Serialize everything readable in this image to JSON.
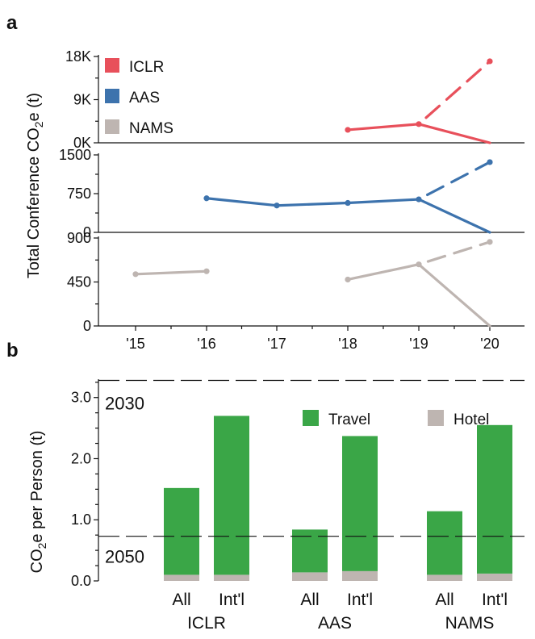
{
  "chart_data": [
    {
      "panel": "a",
      "type": "line",
      "ylabel": "Total Conference CO2e (t)",
      "x": [
        "'15",
        "'16",
        "'17",
        "'18",
        "'19",
        "'20"
      ],
      "colors": {
        "ICLR": "#e8505b",
        "AAS": "#3d73ad",
        "NAMS": "#beb5b1"
      },
      "legend": [
        "ICLR",
        "AAS",
        "NAMS"
      ],
      "subplots": [
        {
          "series": "ICLR",
          "ylim": [
            0,
            18000
          ],
          "yticks": [
            {
              "value": 0,
              "label": "0K"
            },
            {
              "value": 9000,
              "label": "9K"
            },
            {
              "value": 18000,
              "label": "18K"
            }
          ],
          "solid": [
            [
              "'18",
              2700
            ],
            [
              "'19",
              3900
            ],
            [
              "'20",
              0
            ]
          ],
          "dashed": [
            [
              "'19",
              3900
            ],
            [
              "'20",
              17000
            ]
          ]
        },
        {
          "series": "AAS",
          "ylim": [
            0,
            1500
          ],
          "yticks": [
            {
              "value": 0,
              "label": "0"
            },
            {
              "value": 750,
              "label": "750"
            },
            {
              "value": 1500,
              "label": "1500"
            }
          ],
          "solid": [
            [
              "'16",
              660
            ],
            [
              "'17",
              520
            ],
            [
              "'18",
              570
            ],
            [
              "'19",
              640
            ],
            [
              "'20",
              0
            ]
          ],
          "dashed": [
            [
              "'19",
              640
            ],
            [
              "'20",
              1360
            ]
          ]
        },
        {
          "series": "NAMS",
          "ylim": [
            0,
            900
          ],
          "yticks": [
            {
              "value": 0,
              "label": "0"
            },
            {
              "value": 450,
              "label": "450"
            },
            {
              "value": 900,
              "label": "900"
            }
          ],
          "solid_segments": [
            [
              [
                "'15",
                530
              ],
              [
                "'16",
                560
              ]
            ],
            [
              [
                "'18",
                475
              ],
              [
                "'19",
                630
              ],
              [
                "'20",
                0
              ]
            ]
          ],
          "dashed": [
            [
              "'19",
              630
            ],
            [
              "'20",
              860
            ]
          ]
        }
      ]
    },
    {
      "panel": "b",
      "type": "bar",
      "stacked": true,
      "ylabel": "CO2e per Person (t)",
      "ylim": [
        0,
        3.3
      ],
      "yticks": [
        "0.0",
        "1.0",
        "2.0",
        "3.0"
      ],
      "groups": [
        "ICLR",
        "AAS",
        "NAMS"
      ],
      "categories": [
        "All",
        "Int'l"
      ],
      "legend": [
        "Travel",
        "Hotel"
      ],
      "colors": {
        "Travel": "#3aa647",
        "Hotel": "#beb5b1"
      },
      "series": [
        {
          "name": "Hotel",
          "values": [
            [
              0.1,
              0.1
            ],
            [
              0.14,
              0.16
            ],
            [
              0.1,
              0.12
            ]
          ]
        },
        {
          "name": "Travel",
          "values": [
            [
              1.42,
              2.6
            ],
            [
              0.7,
              2.21
            ],
            [
              1.04,
              2.43
            ]
          ]
        }
      ],
      "reference_lines": [
        {
          "label": "2030",
          "value": 3.28
        },
        {
          "label": "2050",
          "value": 0.73
        }
      ]
    }
  ]
}
